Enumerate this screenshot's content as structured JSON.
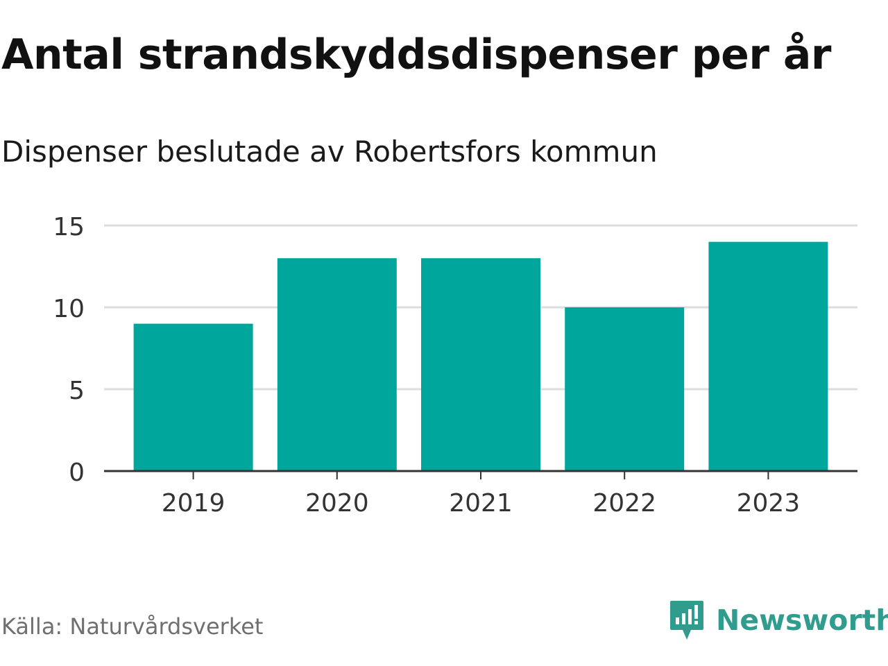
{
  "title": "Antal strandskyddsdispenser per år",
  "subtitle": "Dispenser beslutade av Robertsfors kommun",
  "source": "Källa: Naturvårdsverket",
  "brand": {
    "name": "Newsworthy",
    "icon": "newsworthy-logo-icon",
    "color": "#2f9c8e"
  },
  "colors": {
    "bar": "#00a59b",
    "grid": "#dddddd",
    "axis": "#333333",
    "text": "#333333"
  },
  "chart_data": {
    "type": "bar",
    "categories": [
      "2019",
      "2020",
      "2021",
      "2022",
      "2023"
    ],
    "values": [
      9,
      13,
      13,
      10,
      14
    ],
    "ylim": [
      0,
      15
    ],
    "yticks": [
      "0",
      "5",
      "10",
      "15"
    ],
    "xlabel": "",
    "ylabel": "",
    "grid": true
  }
}
